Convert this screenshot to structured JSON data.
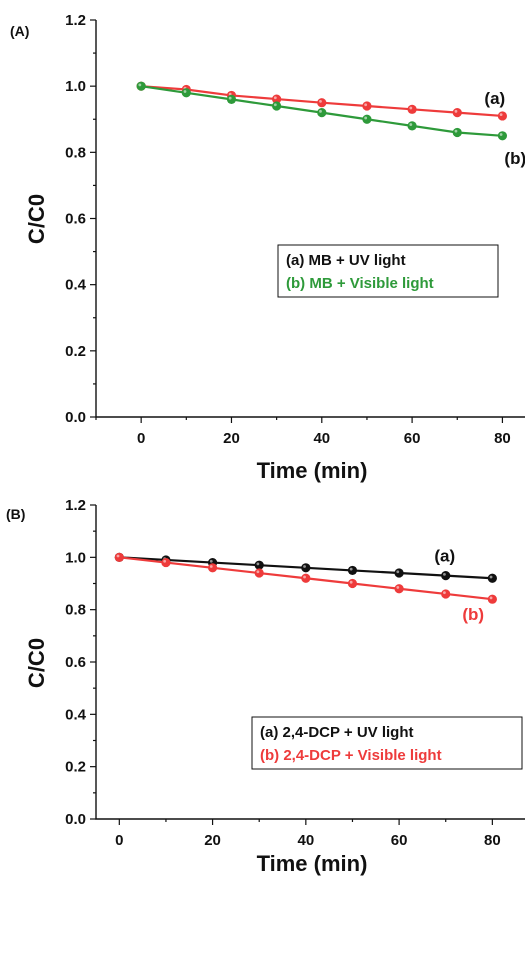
{
  "chart_data": [
    {
      "type": "line",
      "panel_label": "(A)",
      "xlabel": "Time (min)",
      "ylabel": "C/C0",
      "xlim": [
        -10,
        85
      ],
      "ylim": [
        0.0,
        1.2
      ],
      "xticks": [
        0,
        20,
        40,
        60,
        80
      ],
      "xtick_labels": [
        "0",
        "20",
        "40",
        "60",
        "80"
      ],
      "yticks": [
        0.0,
        0.2,
        0.4,
        0.6,
        0.8,
        1.0,
        1.2
      ],
      "ytick_labels": [
        "0.0",
        "0.2",
        "0.4",
        "0.6",
        "0.8",
        "1.0",
        "1.2"
      ],
      "grid": false,
      "legend_position": "middle-right",
      "legend": [
        "(a) MB + UV light",
        "(b) MB + Visible light"
      ],
      "series": [
        {
          "name": "(a) MB + UV light",
          "label": "(a)",
          "color": "#ee3b3b",
          "x": [
            0,
            10,
            20,
            30,
            40,
            50,
            60,
            70,
            80
          ],
          "y": [
            1.0,
            0.99,
            0.972,
            0.961,
            0.95,
            0.94,
            0.93,
            0.92,
            0.91
          ]
        },
        {
          "name": "(b) MB + Visible light",
          "label": "(b)",
          "color": "#2e9a3a",
          "x": [
            0,
            10,
            20,
            30,
            40,
            50,
            60,
            70,
            80
          ],
          "y": [
            1.0,
            0.98,
            0.96,
            0.94,
            0.92,
            0.9,
            0.88,
            0.86,
            0.85
          ]
        }
      ]
    },
    {
      "type": "line",
      "panel_label": "(B)",
      "xlabel": "Time (min)",
      "ylabel": "C/C0",
      "xlim": [
        -5,
        87
      ],
      "ylim": [
        0.0,
        1.2
      ],
      "xticks": [
        0,
        20,
        40,
        60,
        80
      ],
      "xtick_labels": [
        "0",
        "20",
        "40",
        "60",
        "80"
      ],
      "yticks": [
        0.0,
        0.2,
        0.4,
        0.6,
        0.8,
        1.0,
        1.2
      ],
      "ytick_labels": [
        "0.0",
        "0.2",
        "0.4",
        "0.6",
        "0.8",
        "1.0",
        "1.2"
      ],
      "grid": false,
      "legend_position": "middle-right",
      "legend": [
        "(a) 2,4-DCP + UV light",
        "(b) 2,4-DCP + Visible light"
      ],
      "series": [
        {
          "name": "(a) 2,4-DCP + UV light",
          "label": "(a)",
          "color": "#111111",
          "x": [
            0,
            10,
            20,
            30,
            40,
            50,
            60,
            70,
            80
          ],
          "y": [
            1.0,
            0.99,
            0.98,
            0.97,
            0.96,
            0.95,
            0.94,
            0.93,
            0.92
          ]
        },
        {
          "name": "(b) 2,4-DCP + Visible light",
          "label": "(b)",
          "color": "#ee3b3b",
          "x": [
            0,
            10,
            20,
            30,
            40,
            50,
            60,
            70,
            80
          ],
          "y": [
            1.0,
            0.98,
            0.96,
            0.94,
            0.92,
            0.9,
            0.88,
            0.86,
            0.84
          ]
        }
      ]
    }
  ]
}
